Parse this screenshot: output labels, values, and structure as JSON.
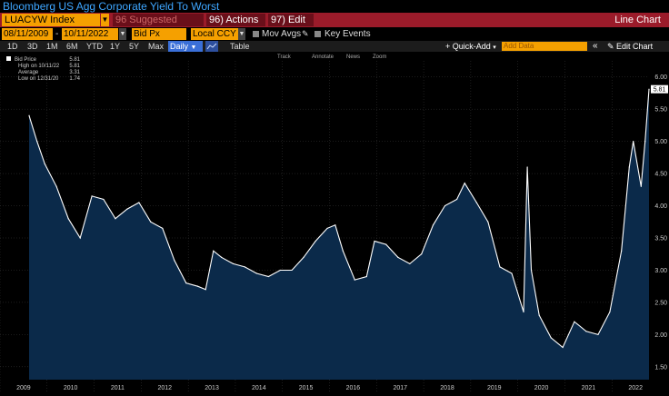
{
  "title": "Bloomberg US Agg Corporate Yield To Worst",
  "command_bar": {
    "ticker": "LUACYW Index",
    "suggested": "96 Suggested Charts",
    "actions": "96) Actions",
    "edit": "97) Edit",
    "view_name": "Line Chart"
  },
  "controls": {
    "start_date": "08/11/2009",
    "date_separator": "-",
    "end_date": "10/11/2022",
    "field": "Bid Px",
    "currency": "Local CCY",
    "mov_avgs": "Mov Avgs",
    "key_events": "Key Events"
  },
  "range_bar": {
    "ranges": [
      "1D",
      "3D",
      "1M",
      "6M",
      "YTD",
      "1Y",
      "5Y",
      "Max"
    ],
    "frequency": "Daily",
    "table": "Table",
    "quick_add": "+ Quick-Add",
    "add_data_placeholder": "Add Data",
    "edit_chart": "Edit Chart"
  },
  "tools": [
    "Track",
    "Annotate",
    "News",
    "Zoom"
  ],
  "legend": {
    "rows": [
      {
        "label": "Bid Price",
        "value": "5.81"
      },
      {
        "label": "High on 10/11/22",
        "value": "5.81"
      },
      {
        "label": "Average",
        "value": "3.31"
      },
      {
        "label": "Low on 12/31/20",
        "value": "1.74"
      }
    ]
  },
  "colors": {
    "accent": "#f5a000",
    "cmd_bar": "#9b1b2a",
    "title_text": "#3ea6ff",
    "line": "#ffffff",
    "area_fill": "#0b2a4a"
  },
  "chart_data": {
    "type": "area",
    "x": [
      "2009-08",
      "2009-10",
      "2009-12",
      "2010-03",
      "2010-06",
      "2010-09",
      "2010-12",
      "2011-03",
      "2011-06",
      "2011-09",
      "2011-12",
      "2012-03",
      "2012-06",
      "2012-09",
      "2012-12",
      "2013-03",
      "2013-05",
      "2013-07",
      "2013-09",
      "2013-12",
      "2014-03",
      "2014-06",
      "2014-09",
      "2014-12",
      "2015-03",
      "2015-06",
      "2015-09",
      "2015-12",
      "2016-02",
      "2016-04",
      "2016-07",
      "2016-10",
      "2016-12",
      "2017-03",
      "2017-06",
      "2017-09",
      "2017-12",
      "2018-03",
      "2018-06",
      "2018-09",
      "2018-11",
      "2019-02",
      "2019-05",
      "2019-08",
      "2019-11",
      "2020-02",
      "2020-03",
      "2020-04",
      "2020-06",
      "2020-09",
      "2020-12",
      "2021-03",
      "2021-06",
      "2021-09",
      "2021-12",
      "2022-03",
      "2022-05",
      "2022-06",
      "2022-08",
      "2022-09",
      "2022-10"
    ],
    "series": [
      {
        "values": [
          5.4,
          5.0,
          4.65,
          4.3,
          3.8,
          3.5,
          4.15,
          4.1,
          3.8,
          3.95,
          4.05,
          3.75,
          3.65,
          3.15,
          2.8,
          2.75,
          2.7,
          3.3,
          3.2,
          3.1,
          3.05,
          2.95,
          2.9,
          3.0,
          3.0,
          3.2,
          3.45,
          3.65,
          3.7,
          3.3,
          2.85,
          2.9,
          3.45,
          3.4,
          3.2,
          3.1,
          3.25,
          3.7,
          4.0,
          4.1,
          4.35,
          4.05,
          3.75,
          3.05,
          2.95,
          2.35,
          4.6,
          3.0,
          2.3,
          1.95,
          1.8,
          2.2,
          2.05,
          2.0,
          2.35,
          3.3,
          4.6,
          5.0,
          4.3,
          5.0,
          5.81
        ]
      }
    ],
    "xlabel": "",
    "ylabel": "",
    "x_tick_labels": [
      "2009",
      "2010",
      "2011",
      "2012",
      "2013",
      "2014",
      "2015",
      "2016",
      "2017",
      "2018",
      "2019",
      "2020",
      "2021",
      "2022"
    ],
    "y_ticks": [
      1.5,
      2.0,
      2.5,
      3.0,
      3.5,
      4.0,
      4.5,
      5.0,
      5.5,
      6.0
    ],
    "y_tick_labels": [
      "1.50",
      "2.00",
      "2.50",
      "3.00",
      "3.50",
      "4.00",
      "4.50",
      "5.00",
      "5.50",
      "6.00"
    ],
    "ylim": [
      1.3,
      6.25
    ],
    "last_value_label": "5.81",
    "grid": true,
    "legend_position": "top-left"
  }
}
